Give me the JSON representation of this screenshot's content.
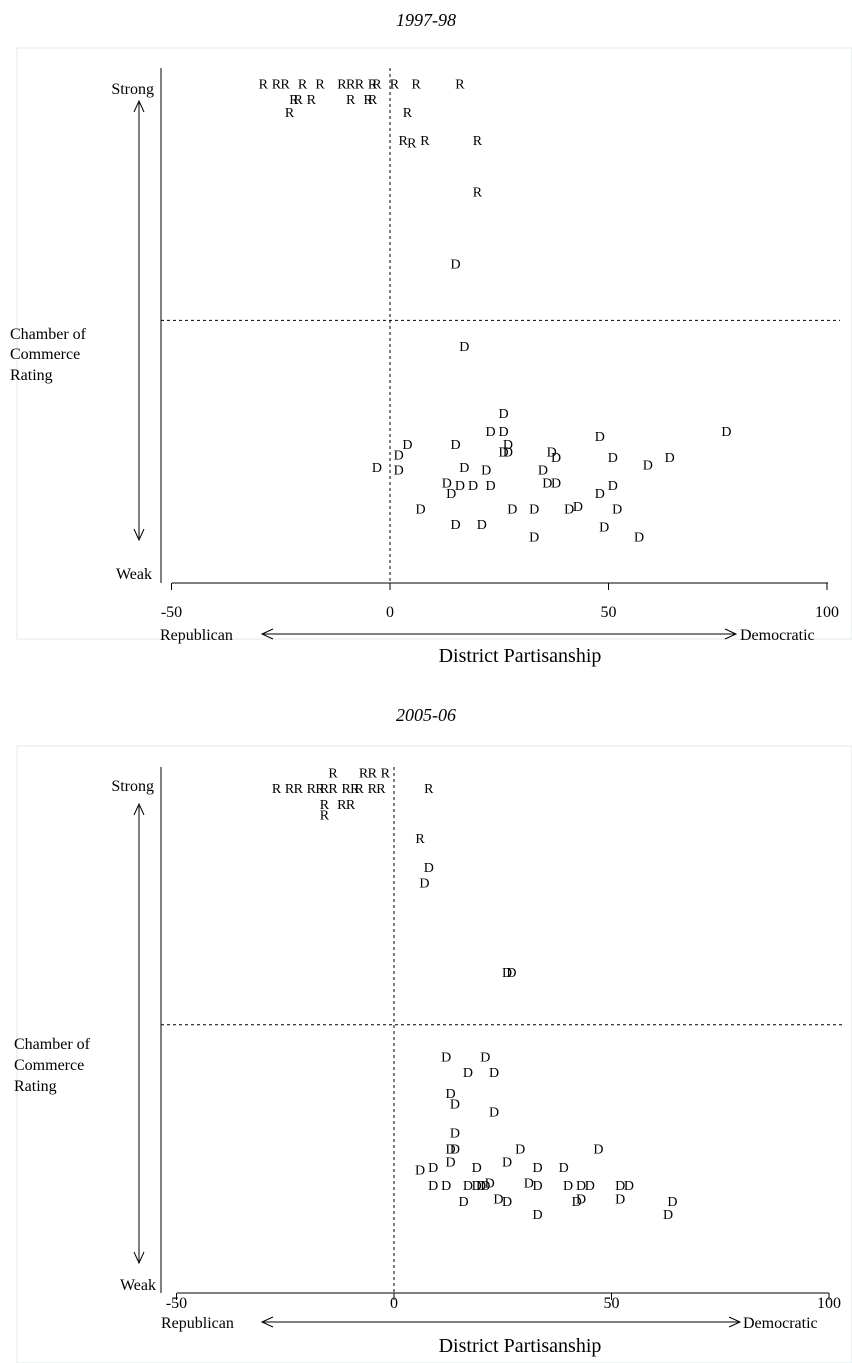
{
  "chart_data": [
    {
      "type": "scatter",
      "title": "1997-98",
      "xlabel": "District Partisanship",
      "x_left_label": "Republican",
      "x_right_label": "Democratic",
      "ylabel_lines": [
        "Chamber of",
        "Commerce",
        "Rating"
      ],
      "y_top_label": "Strong",
      "y_bottom_label": "Weak",
      "xlim": [
        -53,
        104
      ],
      "ylim": [
        0,
        100
      ],
      "xticks": [
        -50,
        0,
        50,
        100
      ],
      "ref_x": 0,
      "ref_y": 51,
      "points": [
        {
          "x": -29,
          "y": 97,
          "label": "R"
        },
        {
          "x": -26,
          "y": 97,
          "label": "R"
        },
        {
          "x": -24,
          "y": 97,
          "label": "R"
        },
        {
          "x": -20,
          "y": 97,
          "label": "R"
        },
        {
          "x": -16,
          "y": 97,
          "label": "R"
        },
        {
          "x": -11,
          "y": 97,
          "label": "R"
        },
        {
          "x": -9,
          "y": 97,
          "label": "R"
        },
        {
          "x": -7,
          "y": 97,
          "label": "R"
        },
        {
          "x": -4,
          "y": 97,
          "label": "R"
        },
        {
          "x": -3,
          "y": 97,
          "label": "R"
        },
        {
          "x": 1,
          "y": 97,
          "label": "R"
        },
        {
          "x": 6,
          "y": 97,
          "label": "R"
        },
        {
          "x": 16,
          "y": 97,
          "label": "R"
        },
        {
          "x": -22,
          "y": 94,
          "label": "R"
        },
        {
          "x": -21,
          "y": 94,
          "label": "R"
        },
        {
          "x": -18,
          "y": 94,
          "label": "R"
        },
        {
          "x": -9,
          "y": 94,
          "label": "R"
        },
        {
          "x": -5,
          "y": 94,
          "label": "R"
        },
        {
          "x": -4,
          "y": 94,
          "label": "R"
        },
        {
          "x": -23,
          "y": 91.5,
          "label": "R"
        },
        {
          "x": 4,
          "y": 91.5,
          "label": "R"
        },
        {
          "x": 3,
          "y": 86,
          "label": "R"
        },
        {
          "x": 5,
          "y": 85.5,
          "label": "R"
        },
        {
          "x": 8,
          "y": 86,
          "label": "R"
        },
        {
          "x": 20,
          "y": 86,
          "label": "R"
        },
        {
          "x": 20,
          "y": 76,
          "label": "R"
        },
        {
          "x": 15,
          "y": 62,
          "label": "D"
        },
        {
          "x": 17,
          "y": 46,
          "label": "D"
        },
        {
          "x": 26,
          "y": 33,
          "label": "D"
        },
        {
          "x": 23,
          "y": 29.5,
          "label": "D"
        },
        {
          "x": 26,
          "y": 29.5,
          "label": "D"
        },
        {
          "x": 48,
          "y": 28.5,
          "label": "D"
        },
        {
          "x": 77,
          "y": 29.5,
          "label": "D"
        },
        {
          "x": 4,
          "y": 27,
          "label": "D"
        },
        {
          "x": 15,
          "y": 27,
          "label": "D"
        },
        {
          "x": 27,
          "y": 27,
          "label": "D"
        },
        {
          "x": 2,
          "y": 25,
          "label": "D"
        },
        {
          "x": 26,
          "y": 25.5,
          "label": "D"
        },
        {
          "x": 27,
          "y": 25.5,
          "label": "D"
        },
        {
          "x": 37,
          "y": 25.5,
          "label": "D"
        },
        {
          "x": 38,
          "y": 24.5,
          "label": "D"
        },
        {
          "x": 51,
          "y": 24.5,
          "label": "D"
        },
        {
          "x": 64,
          "y": 24.5,
          "label": "D"
        },
        {
          "x": 59,
          "y": 23,
          "label": "D"
        },
        {
          "x": -3,
          "y": 22.5,
          "label": "D"
        },
        {
          "x": 2,
          "y": 22,
          "label": "D"
        },
        {
          "x": 17,
          "y": 22.5,
          "label": "D"
        },
        {
          "x": 22,
          "y": 22,
          "label": "D"
        },
        {
          "x": 35,
          "y": 22,
          "label": "D"
        },
        {
          "x": 13,
          "y": 19.5,
          "label": "D"
        },
        {
          "x": 16,
          "y": 19,
          "label": "D"
        },
        {
          "x": 19,
          "y": 19,
          "label": "D"
        },
        {
          "x": 23,
          "y": 19,
          "label": "D"
        },
        {
          "x": 36,
          "y": 19.5,
          "label": "D"
        },
        {
          "x": 38,
          "y": 19.5,
          "label": "D"
        },
        {
          "x": 51,
          "y": 19,
          "label": "D"
        },
        {
          "x": 14,
          "y": 17.5,
          "label": "D"
        },
        {
          "x": 48,
          "y": 17.5,
          "label": "D"
        },
        {
          "x": 7,
          "y": 14.5,
          "label": "D"
        },
        {
          "x": 28,
          "y": 14.5,
          "label": "D"
        },
        {
          "x": 33,
          "y": 14.5,
          "label": "D"
        },
        {
          "x": 41,
          "y": 14.5,
          "label": "D"
        },
        {
          "x": 43,
          "y": 15,
          "label": "D"
        },
        {
          "x": 52,
          "y": 14.5,
          "label": "D"
        },
        {
          "x": 15,
          "y": 11.5,
          "label": "D"
        },
        {
          "x": 21,
          "y": 11.5,
          "label": "D"
        },
        {
          "x": 49,
          "y": 11,
          "label": "D"
        },
        {
          "x": 33,
          "y": 9,
          "label": "D"
        },
        {
          "x": 57,
          "y": 9,
          "label": "D"
        }
      ]
    },
    {
      "type": "scatter",
      "title": "2005-06",
      "xlabel": "District Partisanship",
      "x_left_label": "Republican",
      "x_right_label": "Democratic",
      "ylabel_lines": [
        "Chamber of",
        "Commerce",
        "Rating"
      ],
      "y_top_label": "Strong",
      "y_bottom_label": "Weak",
      "xlim": [
        -53,
        104
      ],
      "ylim": [
        0,
        100
      ],
      "xticks": [
        -50,
        0,
        50,
        100
      ],
      "ref_x": 0,
      "ref_y": 51,
      "points": [
        {
          "x": -14,
          "y": 99,
          "label": "R"
        },
        {
          "x": -7,
          "y": 99,
          "label": "R"
        },
        {
          "x": -5,
          "y": 99,
          "label": "R"
        },
        {
          "x": -2,
          "y": 99,
          "label": "R"
        },
        {
          "x": -27,
          "y": 96,
          "label": "R"
        },
        {
          "x": -24,
          "y": 96,
          "label": "R"
        },
        {
          "x": -22,
          "y": 96,
          "label": "R"
        },
        {
          "x": -19,
          "y": 96,
          "label": "R"
        },
        {
          "x": -17,
          "y": 96,
          "label": "R"
        },
        {
          "x": -16,
          "y": 96,
          "label": "R"
        },
        {
          "x": -14,
          "y": 96,
          "label": "R"
        },
        {
          "x": -11,
          "y": 96,
          "label": "R"
        },
        {
          "x": -9,
          "y": 96,
          "label": "R"
        },
        {
          "x": -8,
          "y": 96,
          "label": "R"
        },
        {
          "x": -5,
          "y": 96,
          "label": "R"
        },
        {
          "x": -3,
          "y": 96,
          "label": "R"
        },
        {
          "x": 8,
          "y": 96,
          "label": "R"
        },
        {
          "x": -16,
          "y": 93,
          "label": "R"
        },
        {
          "x": -12,
          "y": 93,
          "label": "R"
        },
        {
          "x": -10,
          "y": 93,
          "label": "R"
        },
        {
          "x": -16,
          "y": 91,
          "label": "R"
        },
        {
          "x": 6,
          "y": 86.5,
          "label": "R"
        },
        {
          "x": 8,
          "y": 81,
          "label": "D"
        },
        {
          "x": 7,
          "y": 78,
          "label": "D"
        },
        {
          "x": 26,
          "y": 61,
          "label": "D"
        },
        {
          "x": 27,
          "y": 61,
          "label": "D"
        },
        {
          "x": 12,
          "y": 45,
          "label": "D"
        },
        {
          "x": 21,
          "y": 45,
          "label": "D"
        },
        {
          "x": 17,
          "y": 42,
          "label": "D"
        },
        {
          "x": 23,
          "y": 42,
          "label": "D"
        },
        {
          "x": 13,
          "y": 38,
          "label": "D"
        },
        {
          "x": 14,
          "y": 36,
          "label": "D"
        },
        {
          "x": 23,
          "y": 34.5,
          "label": "D"
        },
        {
          "x": 14,
          "y": 30.5,
          "label": "D"
        },
        {
          "x": 13,
          "y": 27.5,
          "label": "D"
        },
        {
          "x": 14,
          "y": 27.5,
          "label": "D"
        },
        {
          "x": 29,
          "y": 27.5,
          "label": "D"
        },
        {
          "x": 47,
          "y": 27.5,
          "label": "D"
        },
        {
          "x": 13,
          "y": 25,
          "label": "D"
        },
        {
          "x": 26,
          "y": 25,
          "label": "D"
        },
        {
          "x": 6,
          "y": 23.5,
          "label": "D"
        },
        {
          "x": 9,
          "y": 24,
          "label": "D"
        },
        {
          "x": 19,
          "y": 24,
          "label": "D"
        },
        {
          "x": 33,
          "y": 24,
          "label": "D"
        },
        {
          "x": 39,
          "y": 24,
          "label": "D"
        },
        {
          "x": 9,
          "y": 20.5,
          "label": "D"
        },
        {
          "x": 12,
          "y": 20.5,
          "label": "D"
        },
        {
          "x": 17,
          "y": 20.5,
          "label": "D"
        },
        {
          "x": 19,
          "y": 20.5,
          "label": "D"
        },
        {
          "x": 20,
          "y": 20.5,
          "label": "D"
        },
        {
          "x": 21,
          "y": 20.5,
          "label": "D"
        },
        {
          "x": 22,
          "y": 21,
          "label": "D"
        },
        {
          "x": 31,
          "y": 21,
          "label": "D"
        },
        {
          "x": 33,
          "y": 20.5,
          "label": "D"
        },
        {
          "x": 40,
          "y": 20.5,
          "label": "D"
        },
        {
          "x": 43,
          "y": 20.5,
          "label": "D"
        },
        {
          "x": 45,
          "y": 20.5,
          "label": "D"
        },
        {
          "x": 52,
          "y": 20.5,
          "label": "D"
        },
        {
          "x": 54,
          "y": 20.5,
          "label": "D"
        },
        {
          "x": 16,
          "y": 17.5,
          "label": "D"
        },
        {
          "x": 24,
          "y": 18,
          "label": "D"
        },
        {
          "x": 26,
          "y": 17.5,
          "label": "D"
        },
        {
          "x": 42,
          "y": 17.5,
          "label": "D"
        },
        {
          "x": 43,
          "y": 18,
          "label": "D"
        },
        {
          "x": 52,
          "y": 18,
          "label": "D"
        },
        {
          "x": 64,
          "y": 17.5,
          "label": "D"
        },
        {
          "x": 33,
          "y": 15,
          "label": "D"
        },
        {
          "x": 63,
          "y": 15,
          "label": "D"
        }
      ]
    }
  ]
}
